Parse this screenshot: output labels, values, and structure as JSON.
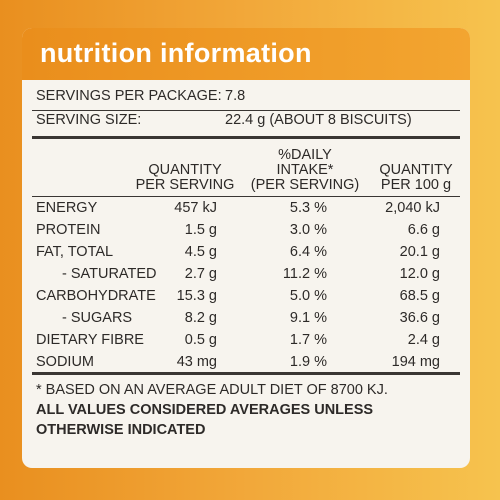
{
  "header": {
    "title": "nutrition information"
  },
  "servings": [
    {
      "label": "SERVINGS PER PACKAGE:",
      "value": "7.8"
    },
    {
      "label": "SERVING SIZE:",
      "value": "22.4 g (ABOUT 8 BISCUITS)"
    }
  ],
  "table": {
    "columns": [
      [
        "QUANTITY",
        "PER SERVING"
      ],
      [
        "%DAILY",
        "INTAKE*",
        "(PER SERVING)"
      ],
      [
        "QUANTITY",
        "PER 100 g"
      ]
    ],
    "rows": [
      [
        "ENERGY",
        "457 kJ",
        "5.3 %",
        "2,040 kJ"
      ],
      [
        "PROTEIN",
        "1.5 g",
        "3.0 %",
        "6.6 g"
      ],
      [
        "FAT, TOTAL",
        "4.5 g",
        "6.4 %",
        "20.1 g"
      ],
      [
        "- SATURATED",
        "2.7 g",
        "11.2 %",
        "12.0 g"
      ],
      [
        "CARBOHYDRATE",
        "15.3 g",
        "5.0 %",
        "68.5 g"
      ],
      [
        "- SUGARS",
        "8.2 g",
        "9.1 %",
        "36.6 g"
      ],
      [
        "DIETARY FIBRE",
        "0.5 g",
        "1.7 %",
        "2.4 g"
      ],
      [
        "SODIUM",
        "43 mg",
        "1.9 %",
        "194 mg"
      ]
    ]
  },
  "footnote": "* BASED ON AN AVERAGE ADULT DIET OF 8700 KJ.",
  "note": "ALL VALUES CONSIDERED AVERAGES UNLESS OTHERWISE INDICATED"
}
